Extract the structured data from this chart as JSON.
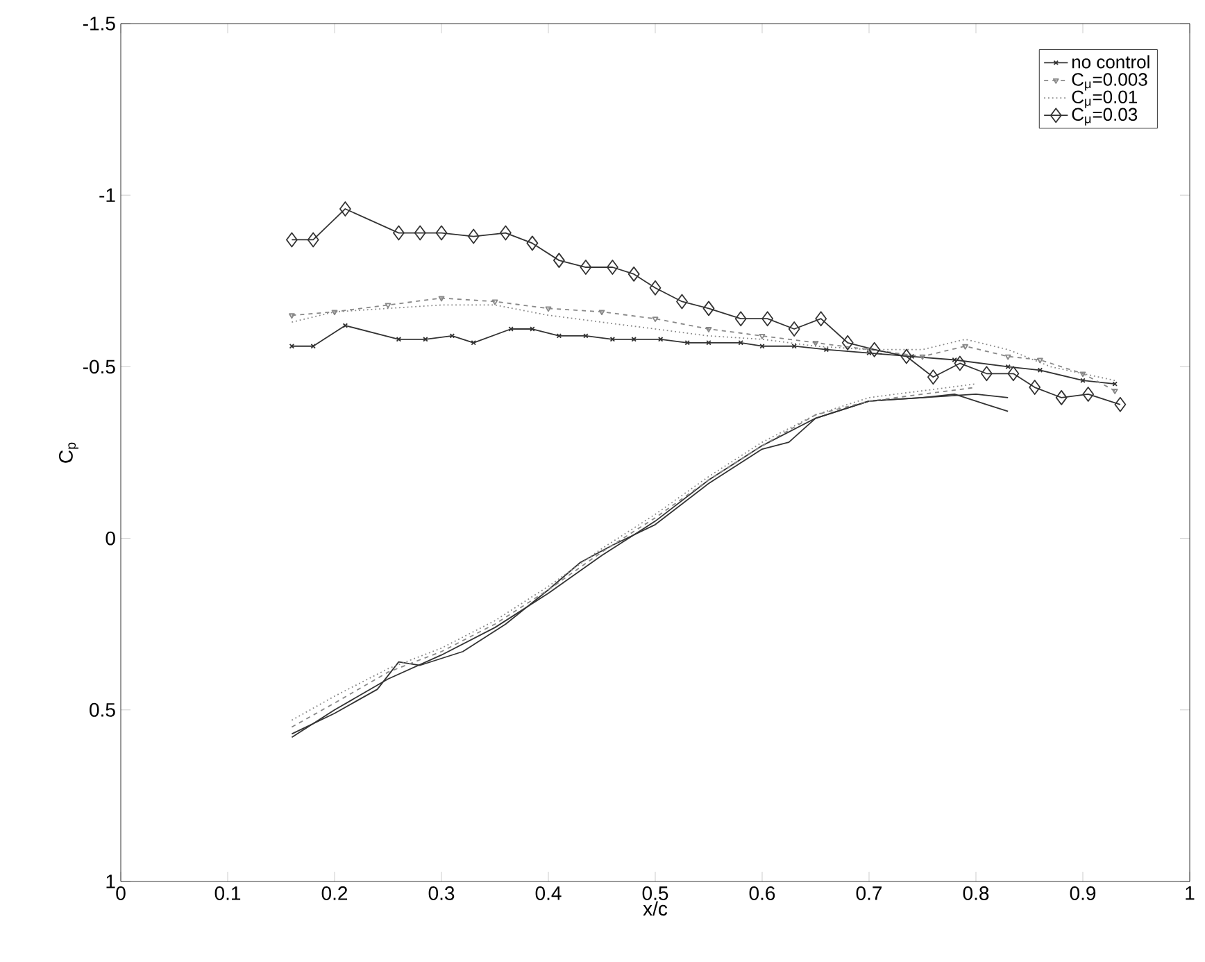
{
  "chart_data": {
    "type": "line",
    "xlabel": "x/c",
    "ylabel": "C$_{p}$",
    "xlim": [
      0,
      1
    ],
    "ylim": [
      1,
      -1.5
    ],
    "xticks": [
      0,
      0.1,
      0.2,
      0.3,
      0.4,
      0.5,
      0.6,
      0.7,
      0.8,
      0.9,
      1
    ],
    "yticks": [
      -1.5,
      -1,
      -0.5,
      0,
      0.5,
      1
    ],
    "grid": false,
    "legend": "top right",
    "series": [
      {
        "name": "no control",
        "color": "#333333",
        "marker": "cross",
        "line_style": "solid",
        "x": [
          0.16,
          0.18,
          0.21,
          0.26,
          0.285,
          0.31,
          0.33,
          0.365,
          0.385,
          0.41,
          0.435,
          0.46,
          0.48,
          0.505,
          0.53,
          0.55,
          0.58,
          0.6,
          0.63,
          0.66,
          0.7,
          0.74,
          0.78,
          0.83,
          0.86,
          0.9,
          0.93
        ],
        "values": [
          -0.56,
          -0.56,
          -0.62,
          -0.58,
          -0.58,
          -0.59,
          -0.57,
          -0.61,
          -0.61,
          -0.59,
          -0.59,
          -0.58,
          -0.58,
          -0.58,
          -0.57,
          -0.57,
          -0.57,
          -0.56,
          -0.56,
          -0.55,
          -0.54,
          -0.53,
          -0.52,
          -0.5,
          -0.49,
          -0.46,
          -0.45
        ]
      },
      {
        "name": "C$_{μ}$=0.003",
        "color": "#888888",
        "marker": "triangle",
        "line_style": "dashed",
        "x": [
          0.16,
          0.2,
          0.25,
          0.3,
          0.35,
          0.4,
          0.45,
          0.5,
          0.55,
          0.6,
          0.65,
          0.7,
          0.75,
          0.79,
          0.83,
          0.86,
          0.9,
          0.93
        ],
        "values": [
          -0.65,
          -0.66,
          -0.68,
          -0.7,
          -0.69,
          -0.67,
          -0.66,
          -0.64,
          -0.61,
          -0.59,
          -0.57,
          -0.55,
          -0.53,
          -0.56,
          -0.53,
          -0.52,
          -0.48,
          -0.43
        ]
      },
      {
        "name": "C$_{μ}$=0.01",
        "color": "#888888",
        "marker": "none",
        "line_style": "dotted",
        "x": [
          0.16,
          0.2,
          0.25,
          0.3,
          0.35,
          0.4,
          0.45,
          0.5,
          0.55,
          0.6,
          0.65,
          0.7,
          0.75,
          0.79,
          0.83,
          0.87,
          0.9,
          0.93
        ],
        "values": [
          -0.63,
          -0.66,
          -0.67,
          -0.68,
          -0.68,
          -0.65,
          -0.63,
          -0.61,
          -0.59,
          -0.58,
          -0.56,
          -0.55,
          -0.55,
          -0.58,
          -0.55,
          -0.5,
          -0.48,
          -0.46
        ]
      },
      {
        "name": "C$_{μ}$=0.03",
        "color": "#333333",
        "marker": "diamond",
        "line_style": "solid",
        "x": [
          0.16,
          0.18,
          0.21,
          0.26,
          0.28,
          0.3,
          0.33,
          0.36,
          0.385,
          0.41,
          0.435,
          0.46,
          0.48,
          0.5,
          0.525,
          0.55,
          0.58,
          0.605,
          0.63,
          0.655,
          0.68,
          0.705,
          0.735,
          0.76,
          0.785,
          0.81,
          0.835,
          0.855,
          0.88,
          0.905,
          0.935
        ],
        "values": [
          -0.87,
          -0.87,
          -0.96,
          -0.89,
          -0.89,
          -0.89,
          -0.88,
          -0.89,
          -0.86,
          -0.81,
          -0.79,
          -0.79,
          -0.77,
          -0.73,
          -0.69,
          -0.67,
          -0.64,
          -0.64,
          -0.61,
          -0.64,
          -0.57,
          -0.55,
          -0.53,
          -0.47,
          -0.51,
          -0.48,
          -0.48,
          -0.44,
          -0.41,
          -0.42,
          -0.39
        ]
      },
      {
        "color": "#333333",
        "marker": "none",
        "line_style": "solid",
        "x": [
          0.16,
          0.2,
          0.24,
          0.26,
          0.28,
          0.32,
          0.36,
          0.4,
          0.43,
          0.46,
          0.5,
          0.55,
          0.6,
          0.625,
          0.65,
          0.7,
          0.75,
          0.78,
          0.81,
          0.83
        ],
        "values": [
          0.57,
          0.51,
          0.44,
          0.36,
          0.37,
          0.33,
          0.25,
          0.15,
          0.07,
          0.02,
          -0.04,
          -0.16,
          -0.26,
          -0.28,
          -0.35,
          -0.4,
          -0.41,
          -0.42,
          -0.39,
          -0.37
        ]
      },
      {
        "color": "#333333",
        "marker": "none",
        "line_style": "solid",
        "x": [
          0.16,
          0.2,
          0.25,
          0.3,
          0.35,
          0.4,
          0.45,
          0.5,
          0.55,
          0.6,
          0.65,
          0.7,
          0.75,
          0.8,
          0.83
        ],
        "values": [
          0.58,
          0.5,
          0.41,
          0.34,
          0.26,
          0.16,
          0.05,
          -0.05,
          -0.17,
          -0.27,
          -0.35,
          -0.4,
          -0.41,
          -0.42,
          -0.41
        ]
      },
      {
        "color": "#888888",
        "marker": "none",
        "line_style": "dotted",
        "x": [
          0.16,
          0.2,
          0.25,
          0.3,
          0.35,
          0.4,
          0.45,
          0.5,
          0.55,
          0.6,
          0.65,
          0.7,
          0.75,
          0.8
        ],
        "values": [
          0.53,
          0.46,
          0.38,
          0.32,
          0.24,
          0.14,
          0.03,
          -0.07,
          -0.18,
          -0.28,
          -0.36,
          -0.41,
          -0.43,
          -0.45
        ]
      },
      {
        "color": "#888888",
        "marker": "none",
        "line_style": "dashed",
        "x": [
          0.16,
          0.2,
          0.25,
          0.3,
          0.35,
          0.4,
          0.45,
          0.5,
          0.55,
          0.6,
          0.65,
          0.7,
          0.75,
          0.8
        ],
        "values": [
          0.55,
          0.48,
          0.39,
          0.33,
          0.25,
          0.15,
          0.04,
          -0.06,
          -0.17,
          -0.27,
          -0.36,
          -0.4,
          -0.42,
          -0.44
        ]
      }
    ]
  }
}
